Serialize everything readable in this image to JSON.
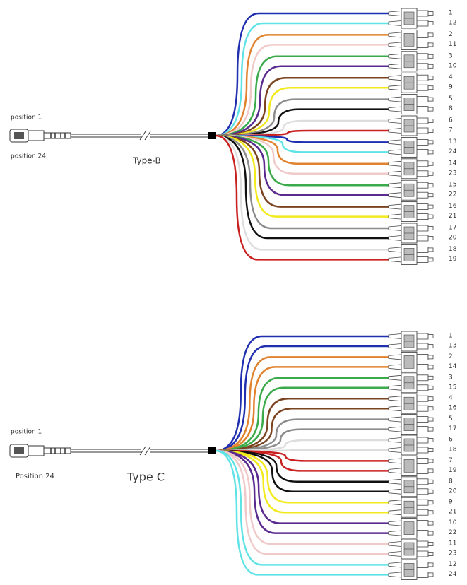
{
  "diagrams": [
    {
      "position_top": "position 1",
      "position_bottom": "position 24",
      "type_label": "Type-B",
      "ports": [
        {
          "label": 1,
          "color": "#1f2fb0"
        },
        {
          "label": 12,
          "color": "#5fe3e6"
        },
        {
          "label": 2,
          "color": "#e0822e"
        },
        {
          "label": 11,
          "color": "#f0c9c9"
        },
        {
          "label": 3,
          "color": "#3aaa4a"
        },
        {
          "label": 10,
          "color": "#5a2a8e"
        },
        {
          "label": 4,
          "color": "#7a4420"
        },
        {
          "label": 9,
          "color": "#f2ea1e"
        },
        {
          "label": 5,
          "color": "#8c8c8c"
        },
        {
          "label": 8,
          "color": "#111111"
        },
        {
          "label": 6,
          "color": "#dddddd"
        },
        {
          "label": 7,
          "color": "#c92020"
        },
        {
          "label": 13,
          "color": "#1f2fb0"
        },
        {
          "label": 24,
          "color": "#5fe3e6"
        },
        {
          "label": 14,
          "color": "#e0822e"
        },
        {
          "label": 23,
          "color": "#f0c9c9"
        },
        {
          "label": 15,
          "color": "#3aaa4a"
        },
        {
          "label": 22,
          "color": "#5a2a8e"
        },
        {
          "label": 16,
          "color": "#7a4420"
        },
        {
          "label": 21,
          "color": "#f2ea1e"
        },
        {
          "label": 17,
          "color": "#8c8c8c"
        },
        {
          "label": 20,
          "color": "#111111"
        },
        {
          "label": 18,
          "color": "#dddddd"
        },
        {
          "label": 19,
          "color": "#c92020"
        }
      ]
    },
    {
      "position_top": "position 1",
      "position_bottom": "Position 24",
      "type_label": "Type C",
      "ports": [
        {
          "label": 1,
          "color": "#1f2fb0"
        },
        {
          "label": 13,
          "color": "#1f2fb0"
        },
        {
          "label": 2,
          "color": "#e0822e"
        },
        {
          "label": 14,
          "color": "#e0822e"
        },
        {
          "label": 3,
          "color": "#3aaa4a"
        },
        {
          "label": 15,
          "color": "#3aaa4a"
        },
        {
          "label": 4,
          "color": "#7a4420"
        },
        {
          "label": 16,
          "color": "#7a4420"
        },
        {
          "label": 5,
          "color": "#8c8c8c"
        },
        {
          "label": 17,
          "color": "#8c8c8c"
        },
        {
          "label": 6,
          "color": "#dddddd"
        },
        {
          "label": 18,
          "color": "#dddddd"
        },
        {
          "label": 7,
          "color": "#c92020"
        },
        {
          "label": 19,
          "color": "#c92020"
        },
        {
          "label": 8,
          "color": "#111111"
        },
        {
          "label": 20,
          "color": "#111111"
        },
        {
          "label": 9,
          "color": "#f2ea1e"
        },
        {
          "label": 21,
          "color": "#f2ea1e"
        },
        {
          "label": 10,
          "color": "#5a2a8e"
        },
        {
          "label": 22,
          "color": "#5a2a8e"
        },
        {
          "label": 11,
          "color": "#f0c9c9"
        },
        {
          "label": 23,
          "color": "#f0c9c9"
        },
        {
          "label": 12,
          "color": "#5fe3e6"
        },
        {
          "label": 24,
          "color": "#5fe3e6"
        }
      ]
    }
  ]
}
